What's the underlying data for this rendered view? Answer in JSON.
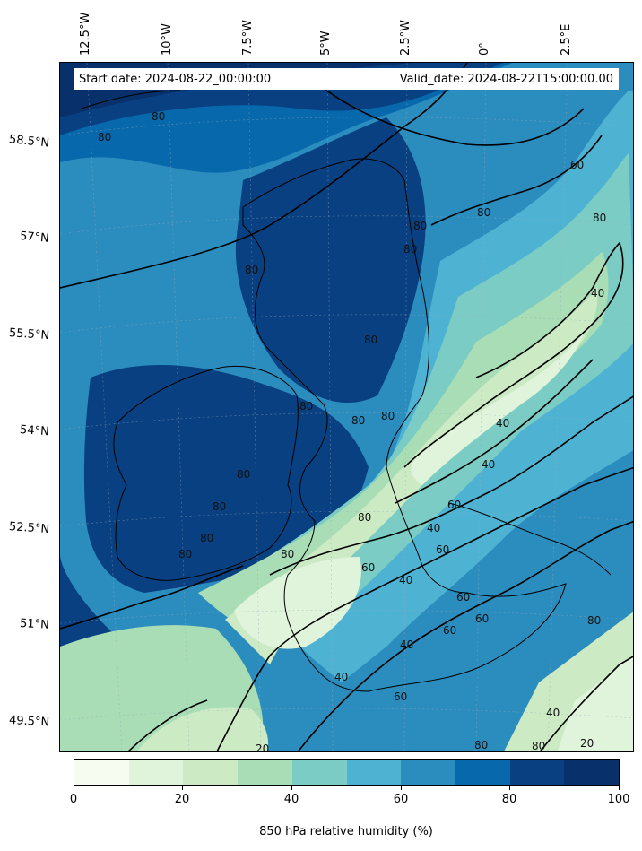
{
  "header": {
    "start_date": "Start date: 2024-08-22_00:00:00",
    "valid_date": "Valid_date: 2024-08-22T15:00:00.00"
  },
  "longitude_labels": [
    "12.5°W",
    "10°W",
    "7.5°W",
    "5°W",
    "2.5°W",
    "0°",
    "2.5°E"
  ],
  "latitude_labels": [
    "58.5°N",
    "57°N",
    "55.5°N",
    "54°N",
    "52.5°N",
    "51°N",
    "49.5°N"
  ],
  "contour_labels": [
    "80",
    "80",
    "80",
    "80",
    "80",
    "80",
    "80",
    "80",
    "80",
    "80",
    "80",
    "80",
    "80",
    "80",
    "60",
    "80",
    "40",
    "40",
    "40",
    "60",
    "60",
    "80",
    "80",
    "60",
    "40",
    "60",
    "60",
    "40",
    "60",
    "40",
    "40",
    "60",
    "40",
    "20",
    "20",
    "80",
    "80",
    "80"
  ],
  "colorbar": {
    "title": "850 hPa relative humidity (%)",
    "tick_labels": [
      "0",
      "20",
      "40",
      "60",
      "80",
      "100"
    ],
    "colors": [
      "#f7fcf0",
      "#e0f3db",
      "#ccebc5",
      "#a8ddb5",
      "#7bccc4",
      "#4eb3d3",
      "#2b8cbe",
      "#0868ac",
      "#084081",
      "#08306b"
    ]
  }
}
